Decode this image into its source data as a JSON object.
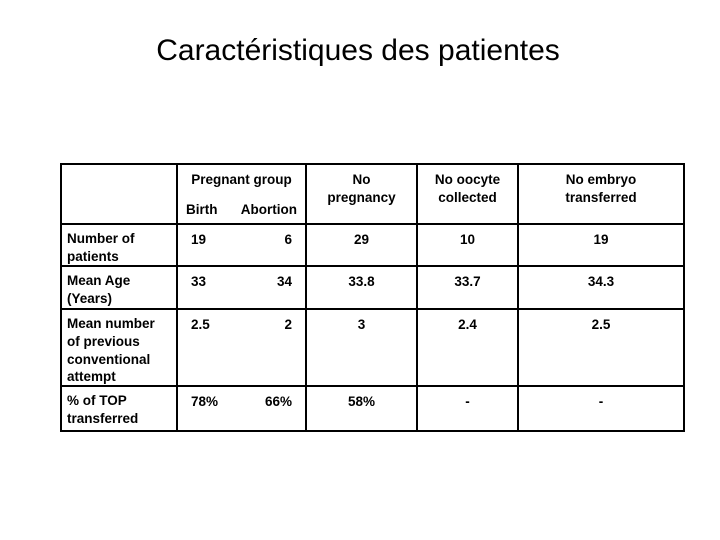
{
  "slide": {
    "title": "Caractéristiques des patientes"
  },
  "table": {
    "header": {
      "pregnant_group": "Pregnant group",
      "birth": "Birth",
      "abortion": "Abortion",
      "no_pregnancy": "No\npregnancy",
      "no_oocyte_collected": "No oocyte\ncollected",
      "no_embryo_transferred": "No embryo\ntransferred"
    },
    "rows": [
      {
        "label": "Number of\npatients",
        "birth": "19",
        "abortion": "6",
        "no_pregnancy": "29",
        "no_oocyte_collected": "10",
        "no_embryo_transferred": "19"
      },
      {
        "label": "Mean Age\n(Years)",
        "birth": "33",
        "abortion": "34",
        "no_pregnancy": "33.8",
        "no_oocyte_collected": "33.7",
        "no_embryo_transferred": "34.3"
      },
      {
        "label": "Mean number\nof previous\nconventional\nattempt",
        "birth": "2.5",
        "abortion": "2",
        "no_pregnancy": "3",
        "no_oocyte_collected": "2.4",
        "no_embryo_transferred": "2.5"
      },
      {
        "label": "% of TOP\ntransferred",
        "birth": "78%",
        "abortion": "66%",
        "no_pregnancy": "58%",
        "no_oocyte_collected": "-",
        "no_embryo_transferred": "-"
      }
    ]
  },
  "colors": {
    "background": "#ffffff",
    "text": "#000000",
    "border": "#000000"
  }
}
